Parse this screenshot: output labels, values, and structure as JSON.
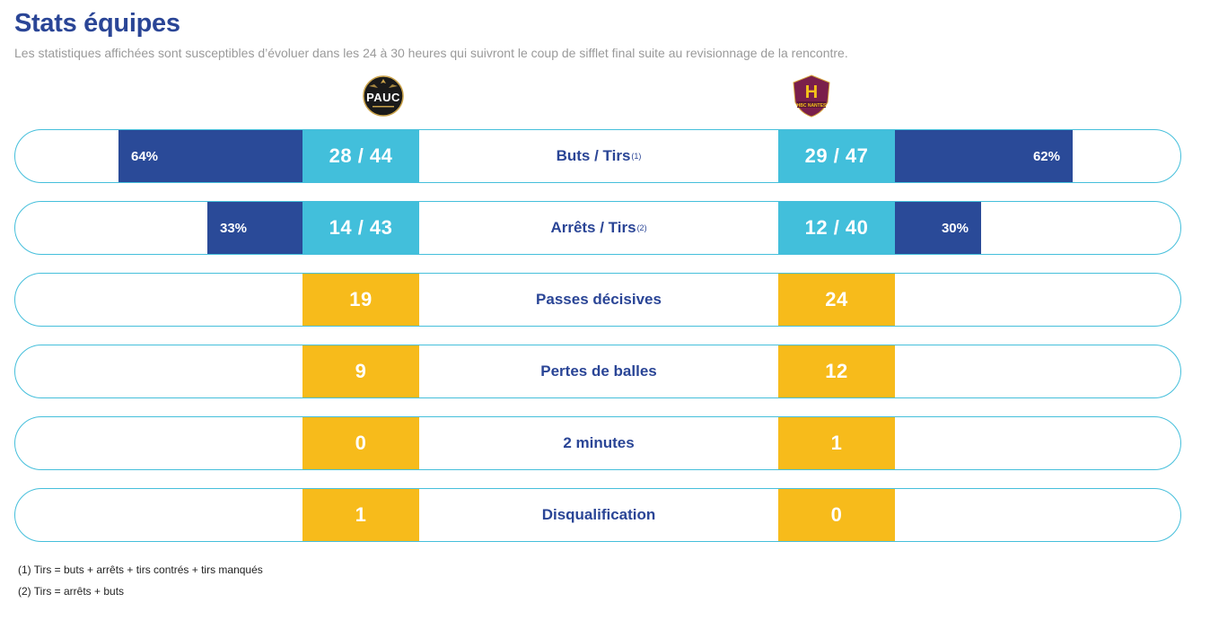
{
  "header": {
    "title": "Stats équipes",
    "subtitle": "Les statistiques affichées sont susceptibles d’évoluer dans les 24 à 30 heures qui suivront le coup de sifflet final suite au revisionnage de la rencontre."
  },
  "teams": {
    "home": {
      "logo_text": "PAUC",
      "logo_icon": "pauc-handball-logo",
      "logo_color": "#1a1a1a",
      "logo_accent": "#c9a24a"
    },
    "away": {
      "logo_text": "H",
      "logo_subtext": "HBC NANTES",
      "logo_icon": "hbc-nantes-logo",
      "logo_color": "#7a1f4b",
      "logo_accent": "#f4c21a"
    }
  },
  "colors": {
    "title": "#2a4596",
    "percent_bar": "#2a4a98",
    "ratio_cell": "#42bfdb",
    "count_cell": "#f7bb1b",
    "row_border": "#45bfdb"
  },
  "stats": [
    {
      "label": "Buts / Tirs",
      "note": "(1)",
      "home": "28 / 44",
      "away": "29 / 47",
      "home_pct": "64%",
      "away_pct": "62%",
      "home_pct_value": 64,
      "away_pct_value": 62,
      "type": "ratio"
    },
    {
      "label": "Arrêts / Tirs",
      "note": "(2)",
      "home": "14 / 43",
      "away": "12 / 40",
      "home_pct": "33%",
      "away_pct": "30%",
      "home_pct_value": 33,
      "away_pct_value": 30,
      "type": "ratio"
    },
    {
      "label": "Passes décisives",
      "home": "19",
      "away": "24",
      "type": "count"
    },
    {
      "label": "Pertes de balles",
      "home": "9",
      "away": "12",
      "type": "count"
    },
    {
      "label": "2 minutes",
      "home": "0",
      "away": "1",
      "type": "count"
    },
    {
      "label": "Disqualification",
      "home": "1",
      "away": "0",
      "type": "count"
    }
  ],
  "footnotes": {
    "note1": "(1) Tirs = buts + arrêts + tirs contrés + tirs manqués",
    "note2": "(2) Tirs = arrêts + buts"
  }
}
